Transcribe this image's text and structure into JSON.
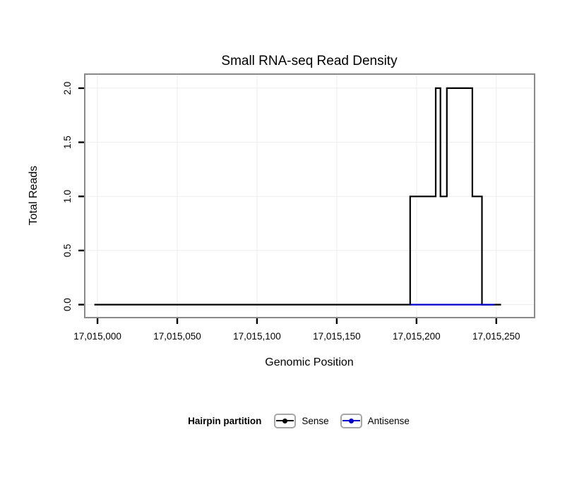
{
  "chart_data": {
    "type": "line",
    "subtype": "step",
    "title": "Small RNA-seq Read Density",
    "xlabel": "Genomic Position",
    "ylabel": "Total Reads",
    "xlim": [
      17014992,
      17015274
    ],
    "ylim": [
      -0.12,
      2.13
    ],
    "x_ticks": [
      17015000,
      17015050,
      17015100,
      17015150,
      17015200,
      17015250
    ],
    "x_tick_labels": [
      "17,015,000",
      "17,015,050",
      "17,015,100",
      "17,015,150",
      "17,015,200",
      "17,015,250"
    ],
    "y_ticks": [
      0.0,
      0.5,
      1.0,
      1.5,
      2.0
    ],
    "y_tick_labels": [
      "0.0",
      "0.5",
      "1.0",
      "1.5",
      "2.0"
    ],
    "grid": true,
    "grid_color": "#ededed",
    "panel_border_color": "#8a8a8a",
    "tick_color": "#000000",
    "background_color": "#ffffff",
    "legend_title": "Hairpin partition",
    "legend_position": "bottom",
    "series": [
      {
        "name": "Sense",
        "color": "#000000",
        "points": [
          [
            17014998,
            0
          ],
          [
            17015196,
            0
          ],
          [
            17015196,
            1
          ],
          [
            17015212,
            1
          ],
          [
            17015212,
            2
          ],
          [
            17015215,
            2
          ],
          [
            17015215,
            1
          ],
          [
            17015219,
            1
          ],
          [
            17015219,
            2
          ],
          [
            17015235,
            2
          ],
          [
            17015235,
            1
          ],
          [
            17015241,
            1
          ],
          [
            17015241,
            0
          ],
          [
            17015253,
            0
          ]
        ]
      },
      {
        "name": "Antisense",
        "color": "#0000cc",
        "points": [
          [
            17015196,
            0
          ],
          [
            17015249,
            0
          ]
        ]
      }
    ]
  }
}
